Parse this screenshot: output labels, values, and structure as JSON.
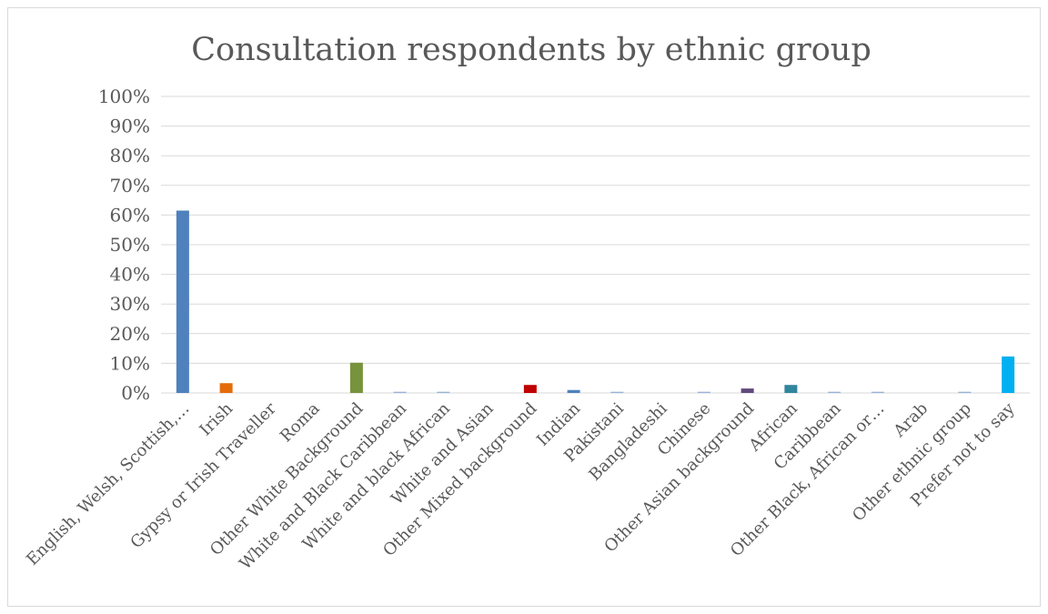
{
  "chart_data": {
    "type": "bar",
    "title": "Consultation respondents by ethnic group",
    "xlabel": "",
    "ylabel": "",
    "ylim": [
      0,
      100
    ],
    "y_ticks": [
      "0%",
      "10%",
      "20%",
      "30%",
      "40%",
      "50%",
      "60%",
      "70%",
      "80%",
      "90%",
      "100%"
    ],
    "grid": true,
    "legend": "none",
    "categories": [
      "English, Welsh, Scottish,…",
      "Irish",
      "Gypsy or Irish Traveller",
      "Roma",
      "Other White Background",
      "White and Black Caribbean",
      "White and black African",
      "White and Asian",
      "Other Mixed background",
      "Indian",
      "Pakistani",
      "Bangladeshi",
      "Chinese",
      "Other Asian background",
      "African",
      "Caribbean",
      "Other Black, African or…",
      "Arab",
      "Other ethnic group",
      "Prefer not to say"
    ],
    "values": [
      61.5,
      3.3,
      0,
      0,
      10.2,
      0.4,
      0.4,
      0,
      2.7,
      1.0,
      0.4,
      0,
      0.4,
      1.5,
      2.7,
      0.4,
      0.4,
      0,
      0.4,
      12.3
    ],
    "colors": [
      "#4f81bd",
      "#e46c0a",
      "#a6a6a6",
      "#a6a6a6",
      "#77933c",
      "#95b3d7",
      "#95b3d7",
      "#a6a6a6",
      "#c00000",
      "#4f81bd",
      "#95b3d7",
      "#a6a6a6",
      "#95b3d7",
      "#604a7b",
      "#31859c",
      "#95b3d7",
      "#95b3d7",
      "#a6a6a6",
      "#95b3d7",
      "#00b0f0"
    ]
  }
}
